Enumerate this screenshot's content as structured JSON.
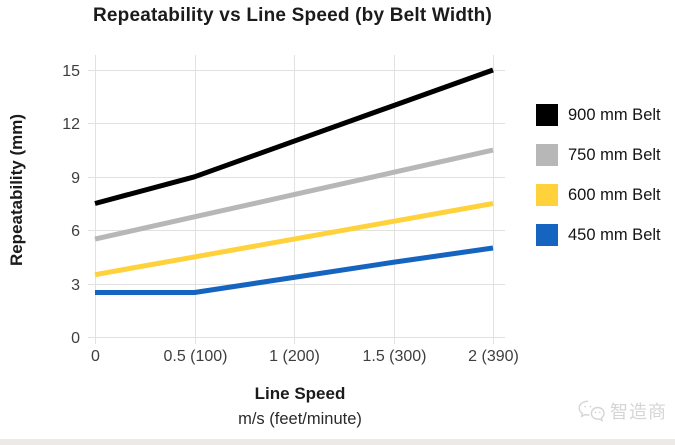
{
  "chart_data": {
    "type": "line",
    "title": "Repeatability vs Line Speed (by Belt Width)",
    "xlabel": "Line Speed",
    "xlabel_sub": "m/s (feet/minute)",
    "ylabel": "Repeatability (mm)",
    "xlim": [
      0,
      2
    ],
    "ylim": [
      0,
      15
    ],
    "grid": true,
    "grid_color": "#e1e1e1",
    "legend_position": "right",
    "x": [
      0,
      0.5,
      1,
      1.5,
      2
    ],
    "x_tick_values": [
      0,
      0.5,
      1,
      1.5,
      2
    ],
    "x_tick_labels": [
      "0",
      "0.5 (100)",
      "1 (200)",
      "1.5 (300)",
      "2 (390)"
    ],
    "y_ticks": [
      0,
      3,
      6,
      9,
      12,
      15
    ],
    "y_tick_labels": [
      "0",
      "3",
      "6",
      "9",
      "12",
      "15"
    ],
    "series": [
      {
        "name": "900 mm Belt",
        "color": "#000000",
        "values": [
          7.5,
          9,
          11,
          13,
          15
        ]
      },
      {
        "name": "750 mm Belt",
        "color": "#b7b7b7",
        "values": [
          5.5,
          6.75,
          8,
          9.25,
          10.5
        ]
      },
      {
        "name": "600 mm Belt",
        "color": "#ffd23c",
        "values": [
          3.5,
          4.5,
          5.5,
          6.5,
          7.5
        ]
      },
      {
        "name": "450 mm Belt",
        "color": "#1565c0",
        "values": [
          2.5,
          2.5,
          3.35,
          4.2,
          5
        ]
      }
    ]
  },
  "watermark": {
    "text": "智造商"
  }
}
